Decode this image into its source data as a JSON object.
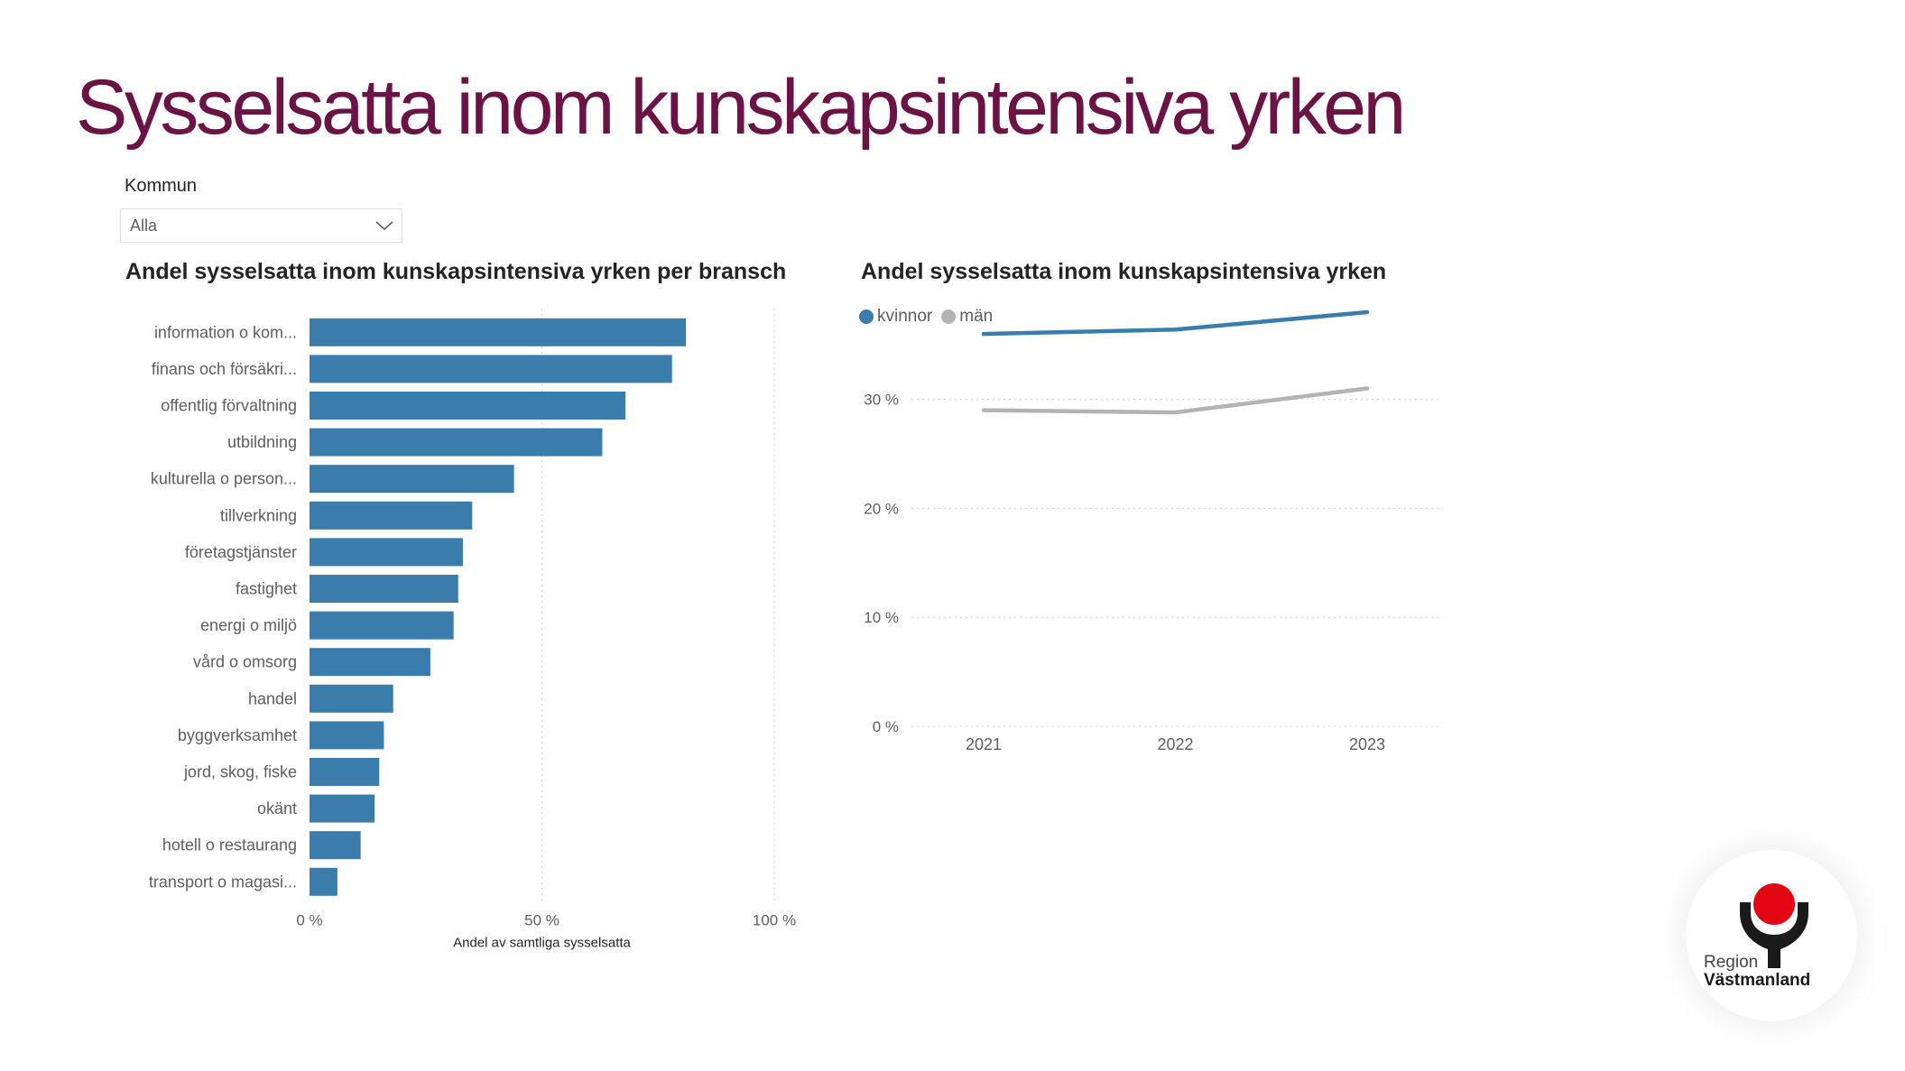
{
  "page": {
    "title": "Sysselsatta inom kunskapsintensiva yrken",
    "title_color": "#6b1345"
  },
  "slicer": {
    "label": "Kommun",
    "selected": "Alla",
    "icon": "chevron-down-icon"
  },
  "logo": {
    "line1": "Region",
    "line2": "Västmanland",
    "colors": {
      "dot": "#e30613",
      "figure": "#1a1a1a"
    }
  },
  "chart_data": [
    {
      "type": "bar",
      "orientation": "horizontal",
      "title": "Andel sysselsatta inom kunskapsintensiva yrken per bransch",
      "xlabel": "Andel av samtliga sysselsatta",
      "ylabel": "",
      "xlim": [
        0,
        100
      ],
      "x_ticks": [
        "0 %",
        "50 %",
        "100 %"
      ],
      "grid": true,
      "color": "#3a7dac",
      "categories": [
        "information o kom...",
        "finans och försäkri...",
        "offentlig förvaltning",
        "utbildning",
        "kulturella o person...",
        "tillverkning",
        "företagstjänster",
        "fastighet",
        "energi o miljö",
        "vård o omsorg",
        "handel",
        "byggverksamhet",
        "jord, skog, fiske",
        "okänt",
        "hotell o restaurang",
        "transport o magasi..."
      ],
      "values": [
        81,
        78,
        68,
        63,
        44,
        35,
        33,
        32,
        31,
        26,
        18,
        16,
        15,
        14,
        11,
        6
      ]
    },
    {
      "type": "line",
      "title": "Andel sysselsatta inom kunskapsintensiva yrken",
      "xlabel": "",
      "ylabel": "",
      "x": [
        "2021",
        "2022",
        "2023"
      ],
      "ylim": [
        0,
        37.5
      ],
      "y_ticks": [
        "0 %",
        "10 %",
        "20 %",
        "30 %"
      ],
      "grid": true,
      "legend_position": "top-left",
      "series": [
        {
          "name": "kvinnor",
          "color": "#3a7dac",
          "values": [
            36.0,
            36.4,
            38.0
          ]
        },
        {
          "name": "män",
          "color": "#b3b3b3",
          "values": [
            29.0,
            28.8,
            31.0
          ]
        }
      ]
    }
  ]
}
